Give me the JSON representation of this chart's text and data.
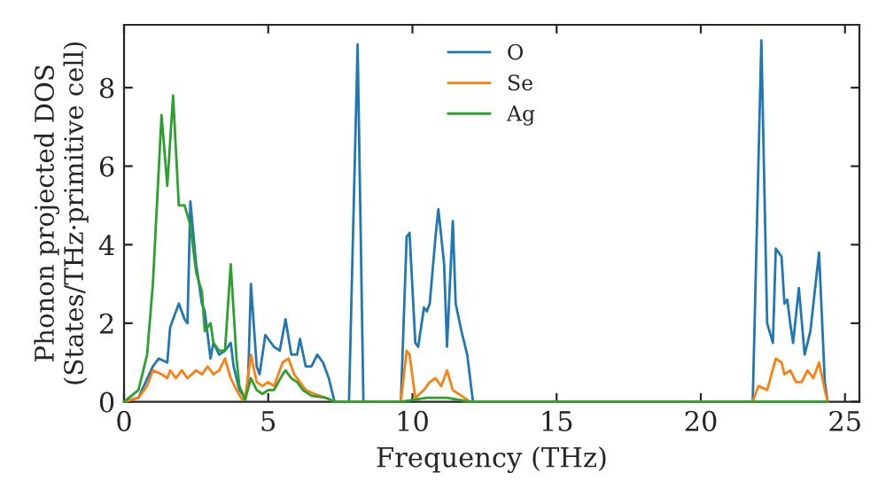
{
  "chart_data": {
    "type": "line",
    "xlabel": "Frequency (THz)",
    "ylabel": "Phonon projected DOS\n(States/THz·primitive cell)",
    "xlim": [
      0,
      25.5
    ],
    "xticks": [
      0,
      5,
      10,
      15,
      20,
      25
    ],
    "ylim": [
      0,
      9.6
    ],
    "yticks": [
      0,
      2,
      4,
      6,
      8
    ],
    "grid": false,
    "legend": "top",
    "marker": "none",
    "line_style": "solid",
    "series": [
      {
        "name": "O",
        "color": "#1f77b4",
        "x": [
          0,
          0.5,
          1.0,
          1.2,
          1.5,
          1.6,
          1.9,
          2.1,
          2.2,
          2.3,
          2.5,
          2.7,
          2.8,
          3.0,
          3.1,
          3.3,
          3.5,
          3.7,
          3.8,
          4.0,
          4.2,
          4.3,
          4.4,
          4.6,
          4.7,
          4.9,
          5.2,
          5.4,
          5.6,
          5.8,
          6.0,
          6.1,
          6.3,
          6.5,
          6.7,
          6.9,
          7.1,
          7.3,
          7.8,
          8.1,
          8.3,
          9.6,
          9.8,
          9.9,
          10.1,
          10.2,
          10.4,
          10.5,
          10.6,
          10.8,
          10.9,
          11.1,
          11.2,
          11.4,
          11.5,
          11.7,
          11.9,
          12.1,
          21.8,
          22.1,
          22.3,
          22.5,
          22.6,
          22.8,
          22.9,
          23.0,
          23.1,
          23.2,
          23.4,
          23.6,
          23.8,
          24.1,
          24.3,
          24.4
        ],
        "values": [
          0,
          0.1,
          0.9,
          1.1,
          1.0,
          1.9,
          2.5,
          2.1,
          2.0,
          5.1,
          3.5,
          2.5,
          2.3,
          1.1,
          1.5,
          1.2,
          1.3,
          1.5,
          0.9,
          0.3,
          0.1,
          0.5,
          3.0,
          0.9,
          0.7,
          1.7,
          1.4,
          1.3,
          2.1,
          1.2,
          1.2,
          1.6,
          0.9,
          0.9,
          1.2,
          1.0,
          0.6,
          0,
          0,
          9.1,
          0,
          0,
          4.2,
          4.3,
          1.5,
          1.4,
          2.4,
          2.3,
          2.5,
          4.2,
          4.9,
          3.5,
          1.4,
          4.6,
          2.5,
          1.8,
          1.2,
          0,
          0,
          9.2,
          2.0,
          1.5,
          3.9,
          3.7,
          2.5,
          2.6,
          2.0,
          1.5,
          2.9,
          1.2,
          1.8,
          3.8,
          0.5,
          0
        ]
      },
      {
        "name": "Se",
        "color": "#ff7f0e",
        "x": [
          0,
          0.5,
          0.8,
          1.0,
          1.3,
          1.5,
          1.6,
          1.8,
          2.0,
          2.2,
          2.5,
          2.7,
          2.9,
          3.1,
          3.3,
          3.5,
          3.7,
          3.9,
          4.1,
          4.2,
          4.4,
          4.6,
          4.8,
          5.0,
          5.2,
          5.5,
          5.7,
          5.9,
          6.1,
          6.3,
          6.6,
          7.0,
          7.3,
          9.6,
          9.8,
          9.9,
          10.1,
          10.4,
          10.6,
          10.8,
          11.0,
          11.2,
          11.4,
          11.8,
          12.0,
          21.8,
          22.0,
          22.3,
          22.6,
          22.8,
          22.9,
          23.1,
          23.3,
          23.5,
          23.7,
          23.9,
          24.1,
          24.3,
          24.4
        ],
        "values": [
          0,
          0.1,
          0.4,
          0.8,
          0.7,
          0.6,
          0.8,
          0.6,
          0.8,
          0.6,
          0.8,
          0.7,
          0.9,
          0.7,
          0.8,
          1.1,
          0.6,
          0.3,
          0.05,
          0.1,
          1.2,
          0.5,
          0.4,
          0.5,
          0.4,
          1.0,
          1.1,
          0.7,
          0.5,
          0.3,
          0.2,
          0.1,
          0,
          0,
          1.3,
          1.2,
          0.1,
          0.3,
          0.5,
          0.6,
          0.4,
          0.8,
          0.3,
          0.1,
          0,
          0,
          0.4,
          0.3,
          1.1,
          1.0,
          0.7,
          0.8,
          0.5,
          0.5,
          0.8,
          0.6,
          1.0,
          0.3,
          0
        ]
      },
      {
        "name": "Ag",
        "color": "#2ca02c",
        "x": [
          0,
          0.5,
          0.8,
          1.0,
          1.3,
          1.5,
          1.7,
          1.9,
          2.1,
          2.3,
          2.5,
          2.7,
          2.8,
          3.0,
          3.1,
          3.3,
          3.5,
          3.7,
          3.9,
          4.0,
          4.2,
          4.4,
          4.6,
          4.8,
          5.0,
          5.2,
          5.5,
          5.6,
          5.8,
          6.0,
          6.2,
          6.5,
          7.0,
          7.3,
          9.6,
          10.5,
          11.2,
          12.0,
          24.4
        ],
        "values": [
          0,
          0.3,
          1.2,
          3.0,
          7.3,
          5.5,
          7.8,
          5.0,
          5.0,
          4.5,
          3.3,
          2.8,
          1.8,
          2.0,
          1.5,
          1.3,
          1.3,
          3.5,
          1.1,
          0.4,
          0.05,
          0.6,
          0.3,
          0.2,
          0.3,
          0.3,
          0.7,
          0.8,
          0.6,
          0.5,
          0.3,
          0.15,
          0.1,
          0,
          0,
          0.1,
          0.1,
          0,
          0
        ]
      }
    ]
  }
}
